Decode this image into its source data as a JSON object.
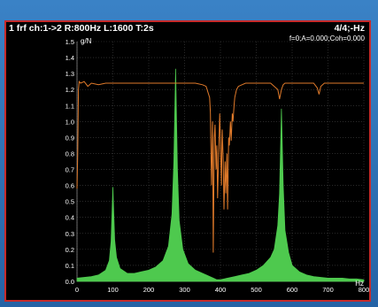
{
  "window": {
    "title": "1 frf ch:1->2 R:800Hz L:1600 T:2s",
    "page_indicator": "4/4;-Hz",
    "cursor_info": "f=0;A=0.000;Coh=0.000"
  },
  "colors": {
    "background": "#000000",
    "border": "#c62a2a",
    "grid": "#444444",
    "frf_fill": "#4ec94e",
    "coherence_line": "#e07a2a",
    "text": "#ffffff"
  },
  "chart_data": {
    "type": "area",
    "title": "1 frf ch:1->2 R:800Hz L:1600 T:2s",
    "xlabel": "Hz",
    "ylabel": "g/N",
    "xlim": [
      0,
      800
    ],
    "ylim": [
      0,
      1.5
    ],
    "x_ticks": [
      "0",
      "100",
      "200",
      "300",
      "400",
      "500",
      "600",
      "700",
      "800"
    ],
    "y_ticks": [
      "0.0",
      "0.1",
      "0.2",
      "0.3",
      "0.4",
      "0.5",
      "0.6",
      "0.7",
      "0.8",
      "0.9",
      "1.0",
      "1.1",
      "1.2",
      "1.3",
      "1.4",
      "1.5"
    ],
    "grid": true,
    "series": [
      {
        "kind": "area",
        "color": "#4ec94e",
        "peaks": [
          {
            "x": 100,
            "y": 0.59
          },
          {
            "x": 275,
            "y": 1.33
          },
          {
            "x": 570,
            "y": 1.08
          }
        ],
        "x": [
          0,
          20,
          40,
          60,
          80,
          90,
          95,
          100,
          105,
          110,
          120,
          140,
          160,
          180,
          200,
          220,
          240,
          255,
          265,
          270,
          275,
          280,
          285,
          295,
          310,
          330,
          360,
          380,
          390,
          400,
          420,
          440,
          460,
          480,
          500,
          520,
          540,
          550,
          560,
          565,
          570,
          575,
          580,
          590,
          600,
          620,
          640,
          660,
          680,
          700,
          720,
          740,
          760,
          780,
          800
        ],
        "y": [
          0.02,
          0.025,
          0.03,
          0.04,
          0.07,
          0.13,
          0.25,
          0.59,
          0.26,
          0.15,
          0.08,
          0.05,
          0.05,
          0.06,
          0.07,
          0.09,
          0.13,
          0.22,
          0.42,
          0.75,
          1.33,
          0.7,
          0.38,
          0.2,
          0.11,
          0.07,
          0.04,
          0.02,
          0.01,
          0.01,
          0.02,
          0.03,
          0.04,
          0.05,
          0.07,
          0.1,
          0.15,
          0.2,
          0.35,
          0.55,
          1.08,
          0.6,
          0.32,
          0.18,
          0.1,
          0.06,
          0.04,
          0.03,
          0.025,
          0.02,
          0.02,
          0.02,
          0.015,
          0.015,
          0.01
        ]
      },
      {
        "kind": "line",
        "color": "#e07a2a",
        "x": [
          0,
          2,
          4,
          6,
          10,
          20,
          30,
          40,
          60,
          80,
          100,
          150,
          200,
          250,
          300,
          330,
          350,
          360,
          370,
          372,
          375,
          378,
          380,
          383,
          385,
          388,
          390,
          392,
          395,
          398,
          400,
          403,
          405,
          408,
          410,
          413,
          415,
          418,
          420,
          423,
          425,
          428,
          430,
          433,
          435,
          438,
          440,
          445,
          450,
          460,
          470,
          480,
          500,
          520,
          540,
          560,
          565,
          570,
          575,
          580,
          600,
          620,
          640,
          660,
          670,
          675,
          680,
          690,
          700,
          720,
          740,
          760,
          780,
          800
        ],
        "y": [
          0.58,
          0.8,
          1.2,
          1.25,
          1.24,
          1.25,
          1.22,
          1.24,
          1.23,
          1.24,
          1.24,
          1.24,
          1.24,
          1.24,
          1.24,
          1.24,
          1.23,
          1.22,
          1.15,
          1.05,
          0.6,
          1.0,
          0.18,
          0.9,
          0.98,
          0.7,
          0.85,
          0.52,
          0.8,
          1.05,
          0.88,
          0.6,
          0.95,
          0.75,
          0.45,
          0.75,
          0.55,
          0.8,
          0.45,
          0.9,
          0.85,
          1.0,
          0.88,
          1.05,
          1.0,
          1.1,
          1.15,
          1.2,
          1.22,
          1.23,
          1.24,
          1.24,
          1.24,
          1.24,
          1.24,
          1.2,
          1.14,
          1.2,
          1.23,
          1.24,
          1.24,
          1.24,
          1.24,
          1.24,
          1.21,
          1.17,
          1.22,
          1.24,
          1.24,
          1.24,
          1.24,
          1.24,
          1.24,
          1.24
        ]
      }
    ]
  }
}
